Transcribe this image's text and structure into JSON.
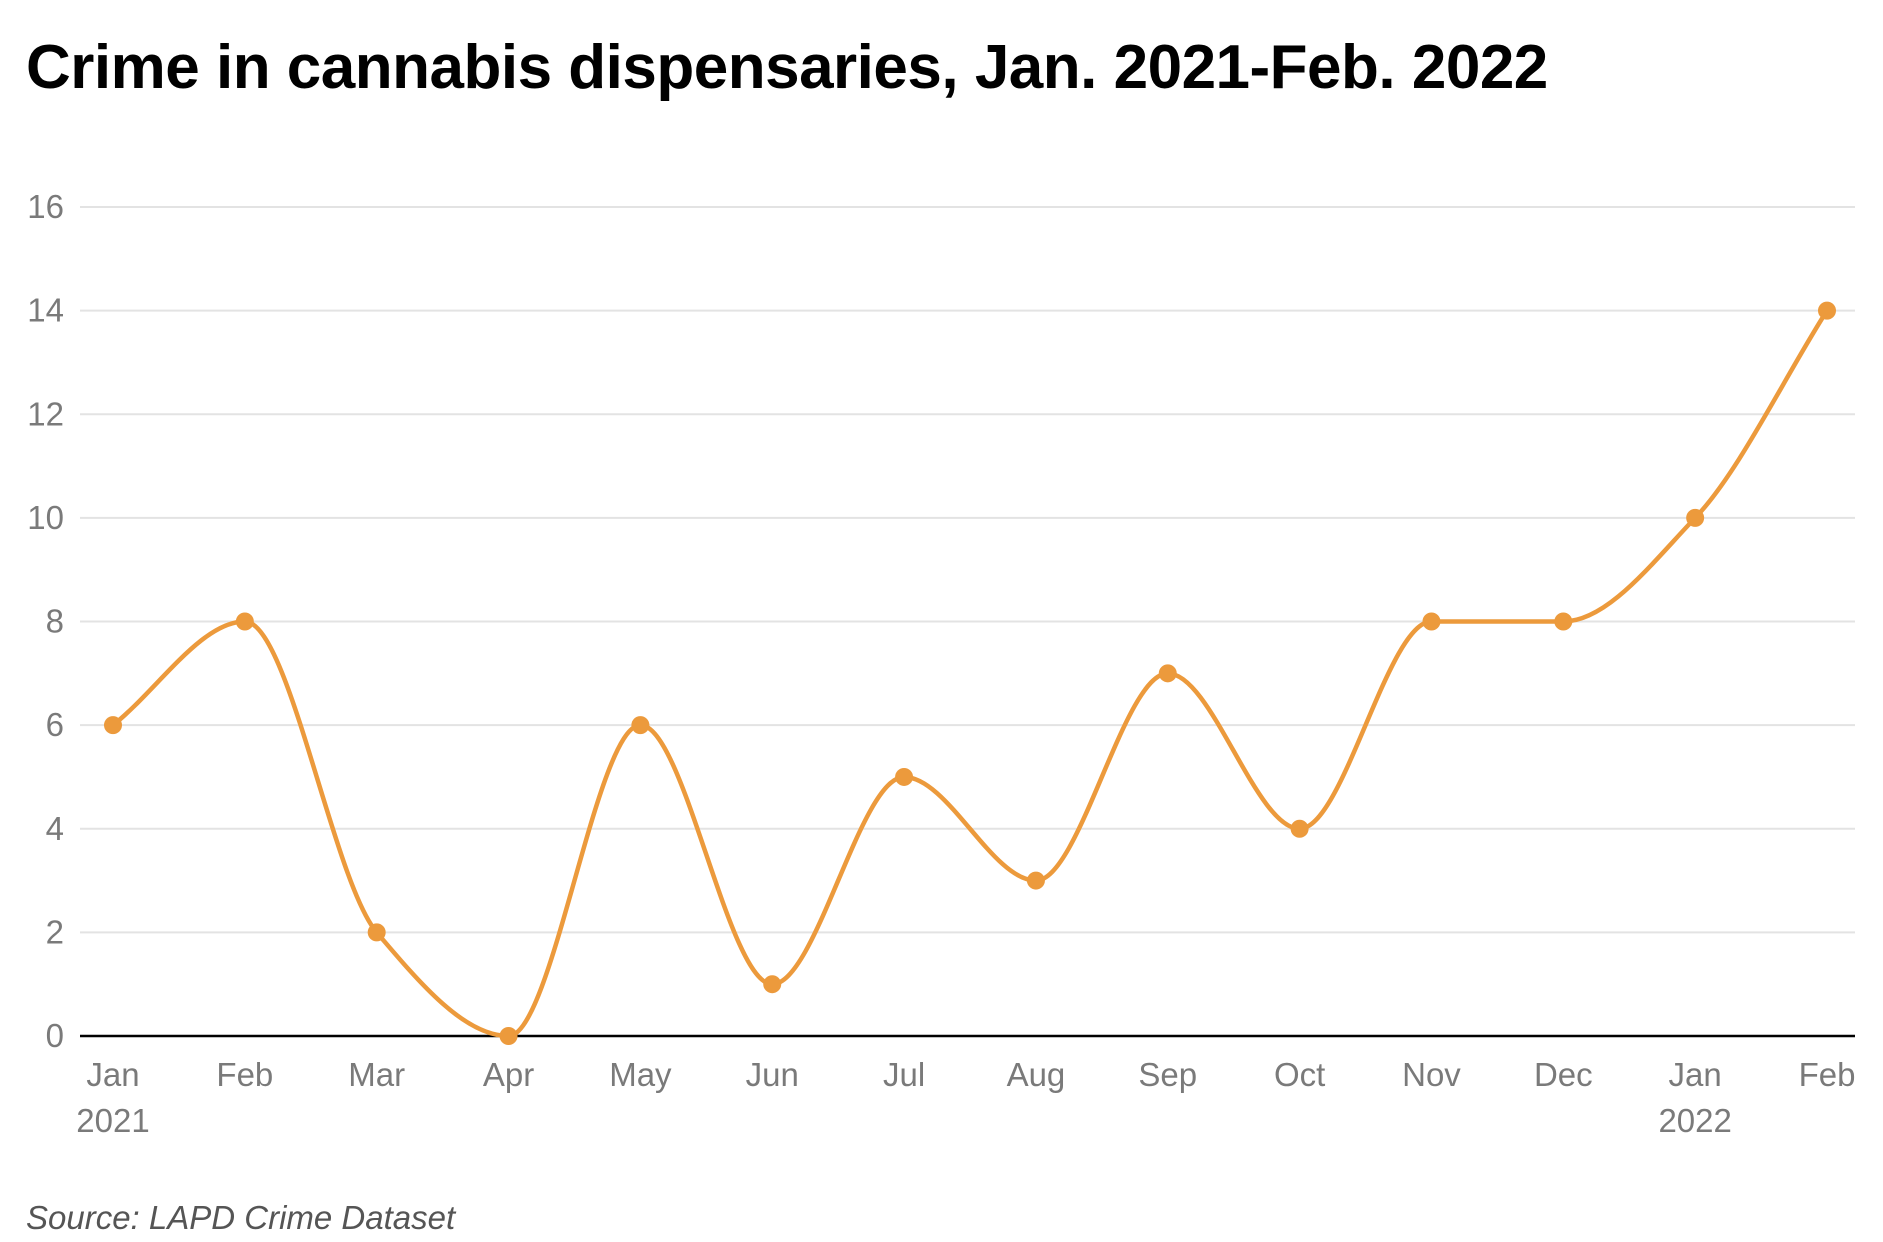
{
  "chart_data": {
    "type": "line",
    "title": "Crime in cannabis dispensaries, Jan. 2021-Feb. 2022",
    "xlabel": "",
    "ylabel": "",
    "categories": [
      "Jan",
      "Feb",
      "Mar",
      "Apr",
      "May",
      "Jun",
      "Jul",
      "Aug",
      "Sep",
      "Oct",
      "Nov",
      "Dec",
      "Jan",
      "Feb"
    ],
    "year_labels": [
      "2021",
      "",
      "",
      "",
      "",
      "",
      "",
      "",
      "",
      "",
      "",
      "",
      "2022",
      ""
    ],
    "series": [
      {
        "values": [
          6,
          8,
          2,
          0,
          6,
          1,
          5,
          3,
          7,
          4,
          8,
          8,
          10,
          14
        ],
        "color": "#ec9a3c"
      }
    ],
    "ylim": [
      0,
      16
    ],
    "yticks": [
      0,
      2,
      4,
      6,
      8,
      10,
      12,
      14,
      16
    ],
    "grid": true,
    "legend": "none",
    "curve": "smooth",
    "markers": true
  },
  "source": "Source: LAPD Crime Dataset",
  "colors": {
    "line": "#ec9a3c",
    "grid": "#e3e3e3",
    "axis": "#000000",
    "tick_text": "#7a7a7a"
  }
}
